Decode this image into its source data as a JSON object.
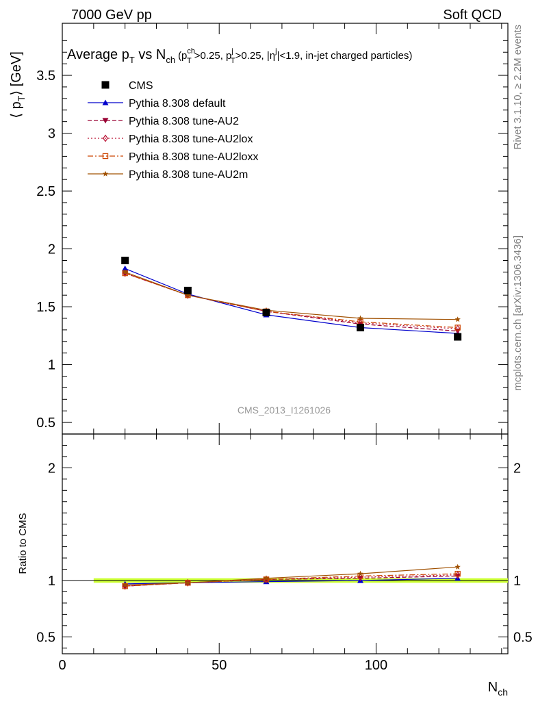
{
  "header": {
    "left": "7000 GeV pp",
    "right": "Soft QCD"
  },
  "title": {
    "main": "Average p",
    "main_sub": "T",
    "vs": " vs N",
    "vs_sub": "ch",
    "cuts": "(p",
    "cuts_sup1": "ch",
    "cuts_sub1": "T",
    "cuts_a": ">0.25, p",
    "cuts_sup2": "j",
    "cuts_sub2": "T",
    "cuts_b": ">0.25, |η",
    "cuts_sup3": "j",
    "cuts_c": "|<1.9, in-jet charged particles)"
  },
  "side_labels": {
    "rivet": "Rivet 3.1.10, ≥ 2.2M events",
    "mcplots": "mcplots.cern.ch [arXiv:1306.3436]"
  },
  "analysis_id": "CMS_2013_I1261026",
  "colors": {
    "cms": "#000000",
    "default": "#0000cc",
    "au2": "#990033",
    "au2lox": "#bb1133",
    "au2loxx": "#cc4400",
    "au2m": "#a05000",
    "band": "#ccff33"
  },
  "chart_data": [
    {
      "type": "line",
      "name": "main",
      "ylabel_pre": "⟨ p",
      "ylabel_sub": "T",
      "ylabel_post": "⟩ [GeV]",
      "xlim": [
        0,
        142
      ],
      "ylim": [
        0.4,
        3.95
      ],
      "yticks": [
        "0.5",
        "1",
        "1.5",
        "2",
        "2.5",
        "3",
        "3.5"
      ],
      "x": [
        20,
        40,
        65,
        95,
        126
      ],
      "series": [
        {
          "key": "cms",
          "name": "CMS",
          "marker": "filled-square",
          "line": "none",
          "values": [
            1.9,
            1.64,
            1.45,
            1.32,
            1.24
          ]
        },
        {
          "key": "default",
          "name": "Pythia 8.308 default",
          "marker": "filled-triangle-up",
          "line": "solid",
          "values": [
            1.83,
            1.61,
            1.43,
            1.32,
            1.27
          ]
        },
        {
          "key": "au2",
          "name": "Pythia 8.308 tune-AU2",
          "marker": "filled-triangle-down",
          "line": "dashed",
          "values": [
            1.79,
            1.6,
            1.46,
            1.35,
            1.29
          ]
        },
        {
          "key": "au2lox",
          "name": "Pythia 8.308 tune-AU2lox",
          "marker": "open-diamond",
          "line": "dotted",
          "values": [
            1.79,
            1.6,
            1.46,
            1.36,
            1.31
          ]
        },
        {
          "key": "au2loxx",
          "name": "Pythia 8.308 tune-AU2loxx",
          "marker": "open-square",
          "line": "dashdot",
          "values": [
            1.79,
            1.6,
            1.46,
            1.37,
            1.32
          ]
        },
        {
          "key": "au2m",
          "name": "Pythia 8.308 tune-AU2m",
          "marker": "filled-star",
          "line": "solid",
          "values": [
            1.8,
            1.6,
            1.47,
            1.4,
            1.39
          ]
        }
      ]
    },
    {
      "type": "line",
      "name": "ratio",
      "ylabel": "Ratio to CMS",
      "xlabel": "N",
      "xlabel_sub": "ch",
      "xlim": [
        0,
        142
      ],
      "ylim": [
        0.35,
        2.3
      ],
      "yticks": [
        "0.5",
        "1",
        "2"
      ],
      "xticks": [
        "0",
        "50",
        "100"
      ],
      "band": {
        "x": [
          10,
          142
        ],
        "y": [
          0.98,
          1.02
        ]
      },
      "x": [
        20,
        40,
        65,
        95,
        126
      ],
      "series": [
        {
          "key": "default",
          "values": [
            0.97,
            0.98,
            0.99,
            1.0,
            1.02
          ]
        },
        {
          "key": "au2",
          "values": [
            0.95,
            0.98,
            1.01,
            1.02,
            1.04
          ]
        },
        {
          "key": "au2lox",
          "values": [
            0.95,
            0.98,
            1.01,
            1.03,
            1.05
          ]
        },
        {
          "key": "au2loxx",
          "values": [
            0.95,
            0.98,
            1.01,
            1.04,
            1.06
          ]
        },
        {
          "key": "au2m",
          "values": [
            0.96,
            0.98,
            1.02,
            1.06,
            1.12
          ]
        }
      ]
    }
  ]
}
